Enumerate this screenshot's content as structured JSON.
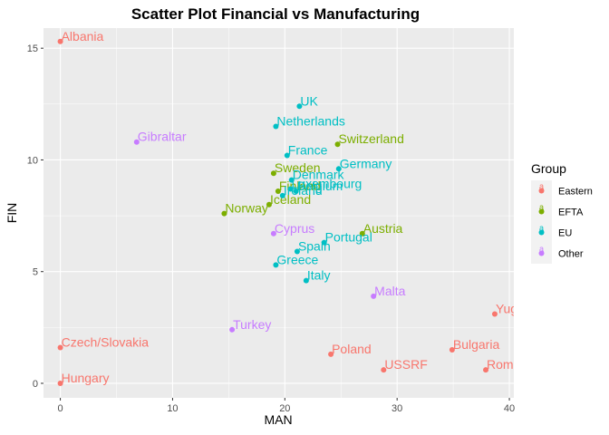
{
  "chart_data": {
    "type": "scatter",
    "title": "Scatter Plot Financial vs Manufacturing",
    "xlabel": "MAN",
    "ylabel": "FIN",
    "xlim": [
      -1.5,
      40.4
    ],
    "ylim": [
      -0.65,
      15.9
    ],
    "x_ticks": [
      0,
      10,
      20,
      30,
      40
    ],
    "y_ticks": [
      0,
      5,
      10,
      15
    ],
    "grid": true,
    "legend": {
      "title": "Group",
      "position": "right",
      "entries": [
        {
          "label": "Eastern",
          "color": "#F8766D"
        },
        {
          "label": "EFTA",
          "color": "#7CAE00"
        },
        {
          "label": "EU",
          "color": "#00BFC4"
        },
        {
          "label": "Other",
          "color": "#C77CFF"
        }
      ]
    },
    "points": [
      {
        "label": "Albania",
        "x": 0.0,
        "y": 15.3,
        "group": "Eastern"
      },
      {
        "label": "Czech/Slovakia",
        "x": 0.0,
        "y": 1.6,
        "group": "Eastern"
      },
      {
        "label": "Hungary",
        "x": 0.0,
        "y": 0.0,
        "group": "Eastern"
      },
      {
        "label": "Poland",
        "x": 24.1,
        "y": 1.3,
        "group": "Eastern"
      },
      {
        "label": "USSRF",
        "x": 28.8,
        "y": 0.6,
        "group": "Eastern"
      },
      {
        "label": "Bulgaria",
        "x": 34.9,
        "y": 1.5,
        "group": "Eastern"
      },
      {
        "label": "Romania",
        "x": 37.9,
        "y": 0.6,
        "group": "Eastern"
      },
      {
        "label": "Yugoslavia",
        "x": 38.7,
        "y": 3.1,
        "group": "Eastern"
      },
      {
        "label": "Switzerland",
        "x": 24.7,
        "y": 10.7,
        "group": "EFTA"
      },
      {
        "label": "Sweden",
        "x": 19.0,
        "y": 9.4,
        "group": "EFTA"
      },
      {
        "label": "Finland",
        "x": 19.4,
        "y": 8.6,
        "group": "EFTA"
      },
      {
        "label": "Iceland",
        "x": 18.6,
        "y": 8.0,
        "group": "EFTA"
      },
      {
        "label": "Norway",
        "x": 14.6,
        "y": 7.6,
        "group": "EFTA"
      },
      {
        "label": "Austria",
        "x": 26.9,
        "y": 6.7,
        "group": "EFTA"
      },
      {
        "label": "UK",
        "x": 21.3,
        "y": 12.4,
        "group": "EU"
      },
      {
        "label": "Netherlands",
        "x": 19.2,
        "y": 11.5,
        "group": "EU"
      },
      {
        "label": "France",
        "x": 20.2,
        "y": 10.2,
        "group": "EU"
      },
      {
        "label": "Germany",
        "x": 24.8,
        "y": 9.6,
        "group": "EU"
      },
      {
        "label": "Denmark",
        "x": 20.6,
        "y": 9.1,
        "group": "EU"
      },
      {
        "label": "Luxembourg",
        "x": 20.5,
        "y": 8.7,
        "group": "EU"
      },
      {
        "label": "Belgium",
        "x": 21.0,
        "y": 8.6,
        "group": "EU"
      },
      {
        "label": "Ireland",
        "x": 19.8,
        "y": 8.4,
        "group": "EU"
      },
      {
        "label": "Portugal",
        "x": 23.5,
        "y": 6.3,
        "group": "EU"
      },
      {
        "label": "Spain",
        "x": 21.1,
        "y": 5.9,
        "group": "EU"
      },
      {
        "label": "Greece",
        "x": 19.2,
        "y": 5.3,
        "group": "EU"
      },
      {
        "label": "Italy",
        "x": 21.9,
        "y": 4.6,
        "group": "EU"
      },
      {
        "label": "Gibraltar",
        "x": 6.8,
        "y": 10.8,
        "group": "Other"
      },
      {
        "label": "Cyprus",
        "x": 19.0,
        "y": 6.7,
        "group": "Other"
      },
      {
        "label": "Turkey",
        "x": 15.3,
        "y": 2.4,
        "group": "Other"
      },
      {
        "label": "Malta",
        "x": 27.9,
        "y": 3.9,
        "group": "Other"
      }
    ]
  }
}
